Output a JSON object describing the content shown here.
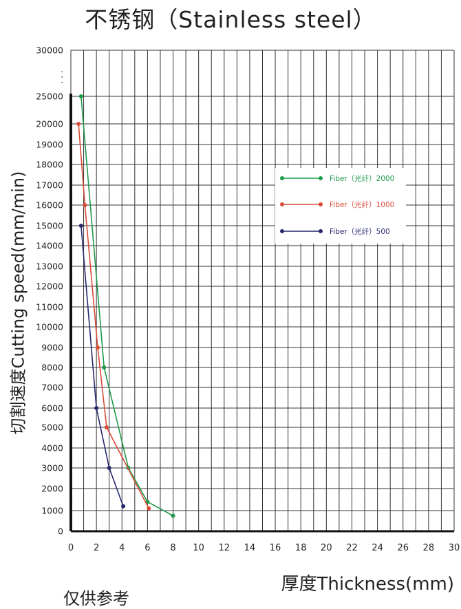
{
  "chart_data": {
    "type": "line",
    "title": "不锈钢（Stainless steel）",
    "xlabel": "厚度Thickness(mm)",
    "ylabel": "切割速度Cutting speed(mm/min)",
    "xlim": [
      0,
      30
    ],
    "x_ticks": [
      "0",
      "2",
      "4",
      "6",
      "8",
      "10",
      "12",
      "14",
      "16",
      "18",
      "20",
      "22",
      "24",
      "26",
      "28",
      "30"
    ],
    "y_ticks": [
      "0",
      "1000",
      "2000",
      "3000",
      "4000",
      "5000",
      "6000",
      "7000",
      "8000",
      "9000",
      "10000",
      "11000",
      "12000",
      "13000",
      "14000",
      "15000",
      "16000",
      "17000",
      "18000",
      "19000",
      "20000",
      "25000",
      "30000"
    ],
    "y_break_marker": "·  ·  ·",
    "grid": true,
    "legend_position": "right",
    "series": [
      {
        "name": "Fiber（光纤）2000",
        "color": "#1f9a4a",
        "x": [
          0.8,
          2.6,
          4.5,
          6.0,
          8.0
        ],
        "y": [
          25000,
          8000,
          3000,
          1400,
          750
        ]
      },
      {
        "name": "Fiber（光纤）1000",
        "color": "#d94a36",
        "x": [
          0.6,
          1.1,
          2.1,
          2.8,
          6.1
        ],
        "y": [
          20000,
          16000,
          9000,
          5000,
          1100
        ]
      },
      {
        "name": "Fiber（光纤）500",
        "color": "#26286e",
        "x": [
          0.8,
          2.0,
          3.0,
          4.1
        ],
        "y": [
          15000,
          6000,
          3000,
          1200
        ]
      }
    ]
  },
  "footnote": "仅供参考"
}
